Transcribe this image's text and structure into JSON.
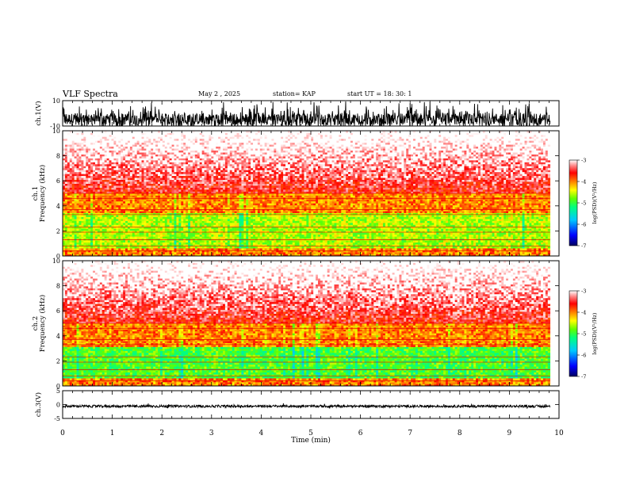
{
  "header": {
    "title": "VLF Spectra",
    "date": "May 2 , 2025",
    "station": "station= KAP",
    "start_ut": "start UT = 18: 30: 1"
  },
  "chart_data": [
    {
      "id": "ch1_waveform",
      "type": "line",
      "ylabel": "ch.1(V)",
      "ylim": [
        -10,
        10
      ],
      "yticks": [
        "10",
        "-10"
      ],
      "xlim": [
        0,
        10
      ],
      "description_of_values": "dense oscillating voltage trace between about -10 and 10 V over 0–9.8 min"
    },
    {
      "id": "ch1_spectrogram",
      "type": "heatmap",
      "ylabel": "ch.1\nFrequency (kHz)",
      "ylim": [
        0,
        10
      ],
      "yticks": [
        "0",
        "2",
        "4",
        "6",
        "8",
        "10"
      ],
      "xlim": [
        0,
        10
      ],
      "colorbar": {
        "label": "log(PSD)(V²/Hz)",
        "range": [
          -7,
          -3
        ],
        "ticks": [
          "-3",
          "-4",
          "-5",
          "-6",
          "-7"
        ]
      },
      "bands": [
        {
          "from_khz": 0,
          "to_khz": 3.5,
          "level": -4.6
        },
        {
          "from_khz": 3.5,
          "to_khz": 5,
          "level": -4.0
        },
        {
          "from_khz": 5,
          "to_khz": 10,
          "level": -3.3
        }
      ]
    },
    {
      "id": "ch2_spectrogram",
      "type": "heatmap",
      "ylabel": "ch.2\nFrequency (kHz)",
      "ylim": [
        0,
        10
      ],
      "yticks": [
        "0",
        "2",
        "4",
        "6",
        "8",
        "10"
      ],
      "xlim": [
        0,
        10
      ],
      "colorbar": {
        "label": "log(PSD)(V²/Hz)",
        "range": [
          -7,
          -3
        ],
        "ticks": [
          "-3",
          "-4",
          "-5",
          "-6",
          "-7"
        ]
      },
      "bands": [
        {
          "from_khz": 0,
          "to_khz": 3.2,
          "level": -4.9
        },
        {
          "from_khz": 3.2,
          "to_khz": 5,
          "level": -4.0
        },
        {
          "from_khz": 5,
          "to_khz": 10,
          "level": -3.3
        }
      ]
    },
    {
      "id": "ch3_waveform",
      "type": "line",
      "ylabel": "ch.3(V)",
      "ylim": [
        -5,
        5
      ],
      "yticks": [
        "5",
        "0",
        "-5"
      ],
      "xlim": [
        0,
        10
      ],
      "description_of_values": "narrow band around -0.5 V over 0–9.8 min"
    }
  ],
  "x_axis": {
    "label": "Time (min)",
    "ticks": [
      "0",
      "1",
      "2",
      "3",
      "4",
      "5",
      "6",
      "7",
      "8",
      "9",
      "10"
    ]
  },
  "colors": {
    "trace": "#000000",
    "colormap": [
      "#000080",
      "#0000ff",
      "#00c0ff",
      "#00ff80",
      "#40ff00",
      "#ffff00",
      "#ff8000",
      "#ff0000",
      "#ffffff"
    ]
  }
}
